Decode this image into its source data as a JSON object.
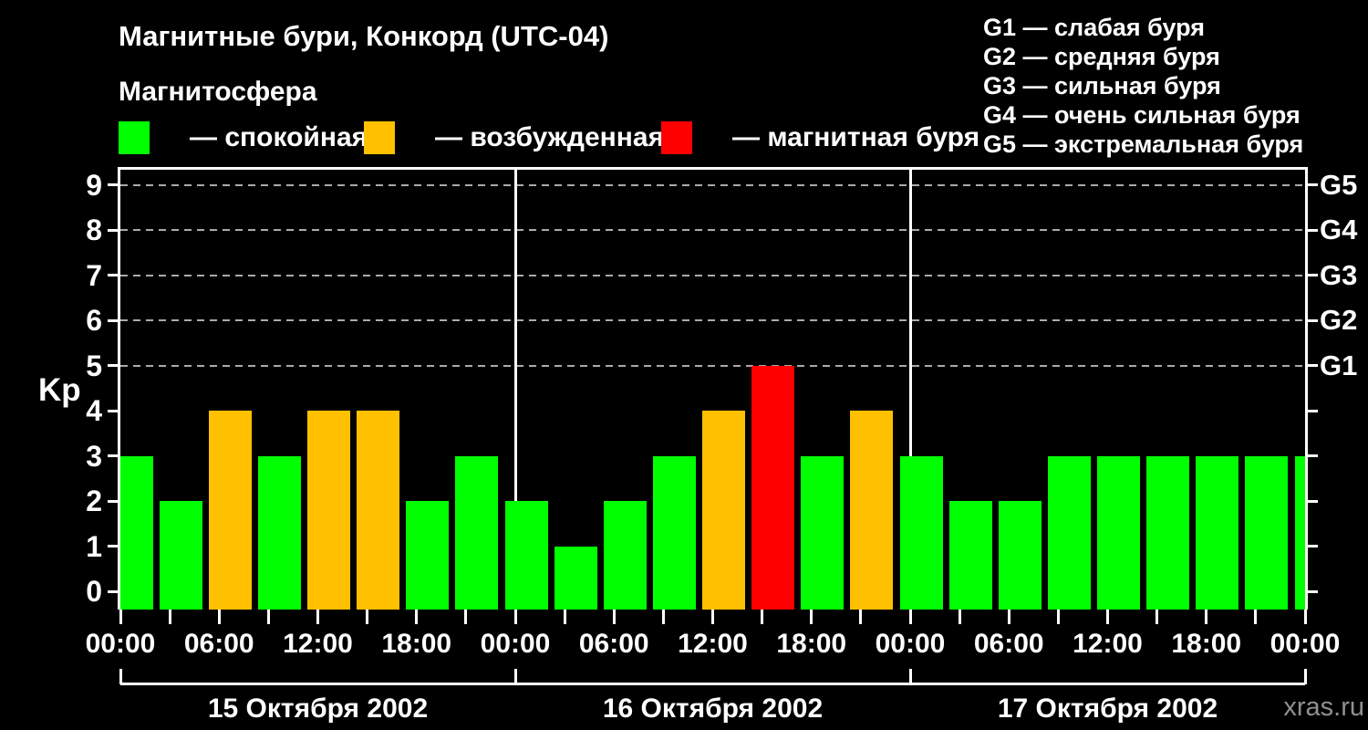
{
  "header": {
    "title": "Магнитные бури, Конкорд (UTC-04)",
    "subtitle": "Магнитосфера"
  },
  "legend": {
    "items": [
      {
        "key": "quiet",
        "label": "— спокойная",
        "color": "#00ff00"
      },
      {
        "key": "excited",
        "label": "— возбужденная",
        "color": "#ffc000"
      },
      {
        "key": "storm",
        "label": "— магнитная буря",
        "color": "#ff0000"
      }
    ]
  },
  "storm_scale_legend": {
    "lines": [
      "G1 — слабая буря",
      "G2 — средняя буря",
      "G3 — сильная буря",
      "G4 — очень сильная буря",
      "G5 — экстремальная буря"
    ]
  },
  "watermark": "xras.ru",
  "chart_data": {
    "type": "bar",
    "title": "Магнитные бури, Конкорд (UTC-04)",
    "ylabel": "Kp",
    "ylim": [
      0,
      9
    ],
    "yticks": [
      0,
      1,
      2,
      3,
      4,
      5,
      6,
      7,
      8,
      9
    ],
    "grid_levels_kp": [
      5,
      6,
      7,
      8,
      9
    ],
    "grid_style": "dashed",
    "right_axis": {
      "labels": [
        "G1",
        "G2",
        "G3",
        "G4",
        "G5"
      ],
      "at_kp": [
        5,
        6,
        7,
        8,
        9
      ]
    },
    "bar_interval_hours": 3,
    "x_time_labels": [
      "00:00",
      "06:00",
      "12:00",
      "18:00"
    ],
    "closing_time_label": "00:00",
    "days": [
      {
        "date": "15 Октября 2002",
        "kp": [
          3,
          2,
          4,
          3,
          4,
          4,
          2,
          3
        ]
      },
      {
        "date": "16 Октября 2002",
        "kp": [
          2,
          1,
          2,
          3,
          4,
          5,
          3,
          4
        ]
      },
      {
        "date": "17 Октября 2002",
        "kp": [
          3,
          2,
          2,
          3,
          3,
          3,
          3,
          3
        ]
      }
    ],
    "next_day_first_kp": 3,
    "color_rule": {
      "quiet_max_kp": 3,
      "excited_max_kp": 4
    },
    "colors": {
      "quiet": "#00ff00",
      "excited": "#ffc000",
      "storm": "#ff0000",
      "axis": "#ffffff",
      "grid": "#aaaaaa",
      "text": "#ffffff",
      "background": "#000000",
      "watermark": "#909090"
    },
    "legend_position": "top"
  }
}
